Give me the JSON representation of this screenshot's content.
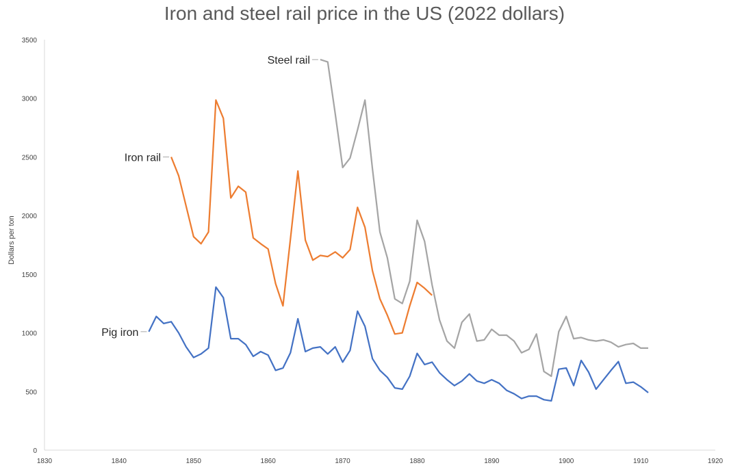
{
  "chart_data": {
    "type": "line",
    "title": "Iron and steel rail price in the US (2022 dollars)",
    "xlabel": "",
    "ylabel": "Dollars per ton",
    "xlim": [
      1830,
      1920
    ],
    "ylim": [
      0,
      3500
    ],
    "x_ticks": [
      1830,
      1840,
      1850,
      1860,
      1870,
      1880,
      1890,
      1900,
      1910,
      1920
    ],
    "y_ticks": [
      0,
      500,
      1000,
      1500,
      2000,
      2500,
      3000,
      3500
    ],
    "grid": false,
    "legend": "none",
    "series": [
      {
        "name": "Pig iron",
        "color": "#4472C4",
        "x": [
          1844,
          1845,
          1846,
          1847,
          1848,
          1849,
          1850,
          1851,
          1852,
          1853,
          1854,
          1855,
          1856,
          1857,
          1858,
          1859,
          1860,
          1861,
          1862,
          1863,
          1864,
          1865,
          1866,
          1867,
          1868,
          1869,
          1870,
          1871,
          1872,
          1873,
          1874,
          1875,
          1876,
          1877,
          1878,
          1879,
          1880,
          1881,
          1882,
          1883,
          1884,
          1885,
          1886,
          1887,
          1888,
          1889,
          1890,
          1891,
          1892,
          1893,
          1894,
          1895,
          1896,
          1897,
          1898,
          1899,
          1900,
          1901,
          1902,
          1903,
          1904,
          1905,
          1906,
          1907,
          1908,
          1909,
          1910,
          1911
        ],
        "values": [
          1010,
          1140,
          1080,
          1095,
          1000,
          880,
          790,
          820,
          870,
          1390,
          1300,
          950,
          950,
          900,
          800,
          840,
          810,
          680,
          700,
          830,
          1120,
          840,
          870,
          880,
          820,
          880,
          750,
          850,
          1185,
          1055,
          780,
          680,
          620,
          530,
          520,
          630,
          825,
          730,
          750,
          660,
          600,
          550,
          590,
          650,
          590,
          570,
          600,
          570,
          510,
          480,
          440,
          460,
          460,
          430,
          420,
          690,
          700,
          550,
          765,
          665,
          520,
          600,
          680,
          755,
          570,
          580,
          540,
          490
        ]
      },
      {
        "name": "Iron rail",
        "color": "#ED7D31",
        "x": [
          1847,
          1848,
          1849,
          1850,
          1851,
          1852,
          1853,
          1854,
          1855,
          1856,
          1857,
          1858,
          1859,
          1860,
          1861,
          1862,
          1863,
          1864,
          1865,
          1866,
          1867,
          1868,
          1869,
          1870,
          1871,
          1872,
          1873,
          1874,
          1875,
          1876,
          1877,
          1878,
          1879,
          1880,
          1881,
          1882
        ],
        "values": [
          2500,
          2340,
          2080,
          1820,
          1760,
          1860,
          2985,
          2830,
          2150,
          2250,
          2200,
          1810,
          1760,
          1715,
          1420,
          1230,
          1800,
          2380,
          1790,
          1620,
          1660,
          1650,
          1690,
          1640,
          1710,
          2070,
          1900,
          1530,
          1290,
          1150,
          990,
          1000,
          1230,
          1430,
          1380,
          1320
        ]
      },
      {
        "name": "Steel rail",
        "color": "#A5A5A5",
        "x": [
          1867,
          1868,
          1869,
          1870,
          1871,
          1872,
          1873,
          1874,
          1875,
          1876,
          1877,
          1878,
          1879,
          1880,
          1881,
          1882,
          1883,
          1884,
          1885,
          1886,
          1887,
          1888,
          1889,
          1890,
          1891,
          1892,
          1893,
          1894,
          1895,
          1896,
          1897,
          1898,
          1899,
          1900,
          1901,
          1902,
          1903,
          1904,
          1905,
          1906,
          1907,
          1908,
          1909,
          1910,
          1911
        ],
        "values": [
          3330,
          3310,
          2870,
          2410,
          2490,
          2730,
          2985,
          2400,
          1860,
          1640,
          1290,
          1250,
          1440,
          1960,
          1780,
          1410,
          1110,
          930,
          870,
          1090,
          1160,
          930,
          940,
          1030,
          980,
          980,
          930,
          830,
          860,
          990,
          670,
          630,
          1010,
          1140,
          950,
          960,
          940,
          930,
          940,
          920,
          880,
          900,
          910,
          870,
          870
        ]
      }
    ]
  }
}
